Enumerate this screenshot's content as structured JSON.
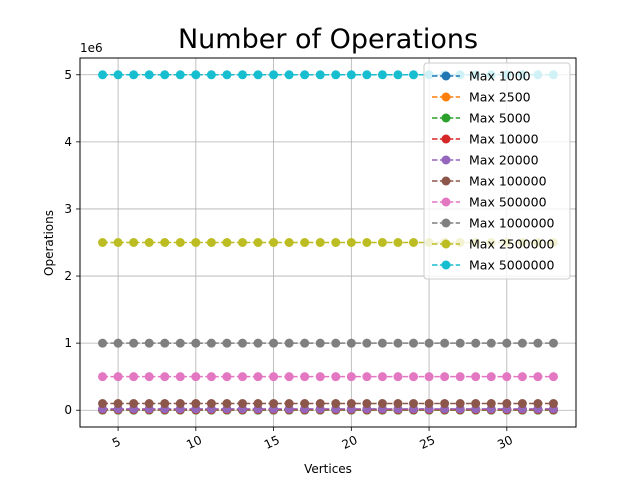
{
  "chart_data": {
    "type": "line",
    "title": "Number of Operations",
    "xlabel": "Vertices",
    "ylabel": "Operations",
    "offset_text": "1e6",
    "x": [
      4,
      5,
      6,
      7,
      8,
      9,
      10,
      11,
      12,
      13,
      14,
      15,
      16,
      17,
      18,
      19,
      20,
      21,
      22,
      23,
      24,
      25,
      26,
      27,
      28,
      29,
      30,
      31,
      32,
      33
    ],
    "xlim": [
      2.55,
      34.45
    ],
    "ylim": [
      -250000,
      5250000
    ],
    "x_ticks": [
      5,
      10,
      15,
      20,
      25,
      30
    ],
    "x_tick_labels": [
      "5",
      "10",
      "15",
      "20",
      "25",
      "30"
    ],
    "y_ticks": [
      0,
      1000000,
      2000000,
      3000000,
      4000000,
      5000000
    ],
    "y_tick_labels": [
      "0",
      "1",
      "2",
      "3",
      "4",
      "5"
    ],
    "grid": true,
    "legend_position": "top-right",
    "series": [
      {
        "name": "Max 1000",
        "color": "#1f77b4",
        "value": 1000
      },
      {
        "name": "Max 2500",
        "color": "#ff7f0e",
        "value": 2500
      },
      {
        "name": "Max 5000",
        "color": "#2ca02c",
        "value": 5000
      },
      {
        "name": "Max 10000",
        "color": "#d62728",
        "value": 10000
      },
      {
        "name": "Max 20000",
        "color": "#9467bd",
        "value": 20000
      },
      {
        "name": "Max 100000",
        "color": "#8c564b",
        "value": 100000
      },
      {
        "name": "Max 500000",
        "color": "#e377c2",
        "value": 500000
      },
      {
        "name": "Max 1000000",
        "color": "#7f7f7f",
        "value": 1000000
      },
      {
        "name": "Max 2500000",
        "color": "#bcbd22",
        "value": 2500000
      },
      {
        "name": "Max 5000000",
        "color": "#17becf",
        "value": 5000000
      }
    ]
  }
}
